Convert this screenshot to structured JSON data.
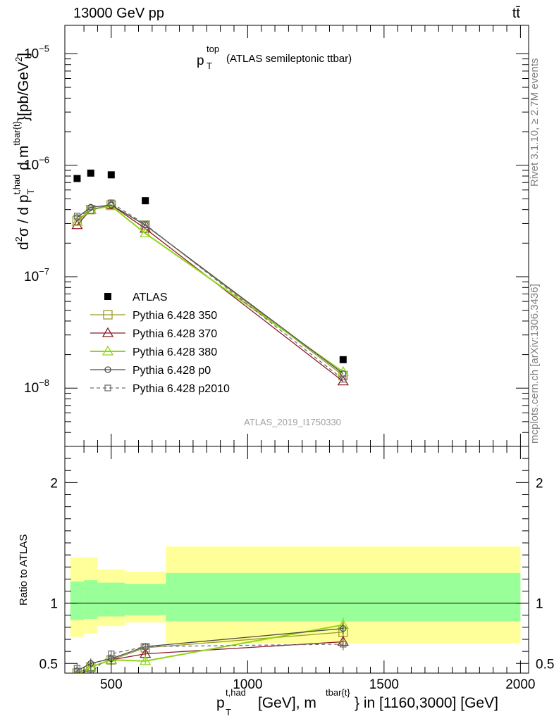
{
  "header": {
    "energy_label": "13000 GeV pp",
    "process_label": "tt̄"
  },
  "side_labels": {
    "rivet": "Rivet 3.1.10, ≥ 2.7M events",
    "mcplots": "mcplots.cern.ch [arXiv:1306.3436]"
  },
  "chart_data": [
    {
      "type": "line",
      "scale": "log",
      "title_main": "p",
      "title_sup": "top",
      "title_sub": "T",
      "title_rest": "(ATLAS semileptonic ttbar)",
      "ylabel": "d²σ / d p_T^{t,had} d m^{tbar{t}}[pb/GeV²]",
      "xlim": [
        330,
        2030
      ],
      "ylim": [
        3e-09,
        1.8e-05
      ],
      "y_ticks": [
        {
          "v": 1e-08,
          "m": "10",
          "e": "−8"
        },
        {
          "v": 1e-07,
          "m": "10",
          "e": "−7"
        },
        {
          "v": 1e-06,
          "m": "10",
          "e": "−6"
        },
        {
          "v": 1e-05,
          "m": "10",
          "e": "−5"
        }
      ],
      "analysis_label": "ATLAS_2019_I1750330",
      "legend_position": "lower-left",
      "data": {
        "name": "ATLAS",
        "color": "#000000",
        "x": [
          375,
          425,
          500,
          625,
          1350
        ],
        "y": [
          7.6e-07,
          8.5e-07,
          8.2e-07,
          4.8e-07,
          1.8e-08
        ]
      },
      "series": [
        {
          "name": "Pythia 6.428 350",
          "color": "#9a9a2e",
          "marker": "square-open",
          "dash": false,
          "x": [
            375,
            425,
            500,
            625,
            1350
          ],
          "y": [
            3.2e-07,
            4e-07,
            4.4e-07,
            2.9e-07,
            1.3e-08
          ]
        },
        {
          "name": "Pythia 6.428 370",
          "color": "#8b1a2a",
          "marker": "triangle-open",
          "dash": false,
          "x": [
            375,
            425,
            500,
            625,
            1350
          ],
          "y": [
            2.9e-07,
            4e-07,
            4.4e-07,
            2.7e-07,
            1.15e-08
          ]
        },
        {
          "name": "Pythia 6.428 380",
          "color": "#8fd61b",
          "marker": "triangle-open",
          "dash": false,
          "x": [
            375,
            425,
            500,
            625,
            1350
          ],
          "y": [
            3.1e-07,
            4e-07,
            4.3e-07,
            2.45e-07,
            1.4e-08
          ]
        },
        {
          "name": "Pythia 6.428 p0",
          "color": "#4a4a4a",
          "marker": "circle-open",
          "dash": false,
          "x": [
            375,
            425,
            500,
            625,
            1350
          ],
          "y": [
            3.4e-07,
            4.2e-07,
            4.4e-07,
            2.9e-07,
            1.35e-08
          ]
        },
        {
          "name": "Pythia 6.428 p2010",
          "color": "#707070",
          "marker": "square-open-small",
          "dash": true,
          "x": [
            375,
            425,
            500,
            625,
            1350
          ],
          "y": [
            3.5e-07,
            3.9e-07,
            4.6e-07,
            2.95e-07,
            1.2e-08
          ]
        }
      ]
    },
    {
      "type": "line",
      "ylabel": "Ratio to ATLAS",
      "xlabel_main": "p",
      "xlabel_sup": "t,had",
      "xlabel_sub": "T",
      "xlabel_mid": "[GeV], m",
      "xlabel_sup2": "tbar{t}",
      "xlabel_rest": "} in [1160,3000] [GeV]",
      "xlim": [
        330,
        2030
      ],
      "ylim": [
        0.42,
        2.3
      ],
      "x_ticks": [
        500,
        1000,
        1500,
        2000
      ],
      "y_ticks": [
        0.5,
        1,
        2
      ],
      "bands": [
        {
          "x0": 350,
          "x1": 400,
          "stat_lo": 0.86,
          "stat_hi": 1.18,
          "tot_lo": 0.72,
          "tot_hi": 1.38
        },
        {
          "x0": 400,
          "x1": 450,
          "stat_lo": 0.87,
          "stat_hi": 1.19,
          "tot_lo": 0.75,
          "tot_hi": 1.38
        },
        {
          "x0": 450,
          "x1": 550,
          "stat_lo": 0.89,
          "stat_hi": 1.17,
          "tot_lo": 0.81,
          "tot_hi": 1.28
        },
        {
          "x0": 550,
          "x1": 700,
          "stat_lo": 0.9,
          "stat_hi": 1.16,
          "tot_lo": 0.84,
          "tot_hi": 1.26
        },
        {
          "x0": 700,
          "x1": 2000,
          "stat_lo": 0.85,
          "stat_hi": 1.25,
          "tot_lo": 0.67,
          "tot_hi": 1.47
        }
      ],
      "series": [
        {
          "name": "Pythia 6.428 350",
          "color": "#9a9a2e",
          "marker": "square-open",
          "dash": false,
          "x": [
            375,
            425,
            500,
            625,
            1350
          ],
          "y": [
            0.42,
            0.47,
            0.53,
            0.63,
            0.76
          ],
          "err": [
            0.04,
            0.04,
            0.03,
            0.03,
            0.05
          ]
        },
        {
          "name": "Pythia 6.428 370",
          "color": "#8b1a2a",
          "marker": "triangle-open",
          "dash": false,
          "x": [
            375,
            425,
            500,
            625,
            1350
          ],
          "y": [
            0.38,
            0.47,
            0.53,
            0.58,
            0.68
          ],
          "err": [
            0.04,
            0.04,
            0.03,
            0.03,
            0.05
          ]
        },
        {
          "name": "Pythia 6.428 380",
          "color": "#8fd61b",
          "marker": "triangle-open",
          "dash": false,
          "x": [
            375,
            425,
            500,
            625,
            1350
          ],
          "y": [
            0.4,
            0.47,
            0.53,
            0.52,
            0.82
          ],
          "err": [
            0.04,
            0.04,
            0.03,
            0.03,
            0.06
          ]
        },
        {
          "name": "Pythia 6.428 p0",
          "color": "#4a4a4a",
          "marker": "circle-open",
          "dash": false,
          "x": [
            375,
            425,
            500,
            625,
            1350
          ],
          "y": [
            0.44,
            0.5,
            0.54,
            0.64,
            0.79
          ],
          "err": [
            0.04,
            0.04,
            0.03,
            0.03,
            0.05
          ]
        },
        {
          "name": "Pythia 6.428 p2010",
          "color": "#707070",
          "marker": "square-open-small",
          "dash": true,
          "x": [
            375,
            425,
            500,
            625,
            1350
          ],
          "y": [
            0.46,
            0.42,
            0.58,
            0.64,
            0.66
          ],
          "err": [
            0.04,
            0.04,
            0.03,
            0.03,
            0.05
          ]
        }
      ]
    }
  ]
}
